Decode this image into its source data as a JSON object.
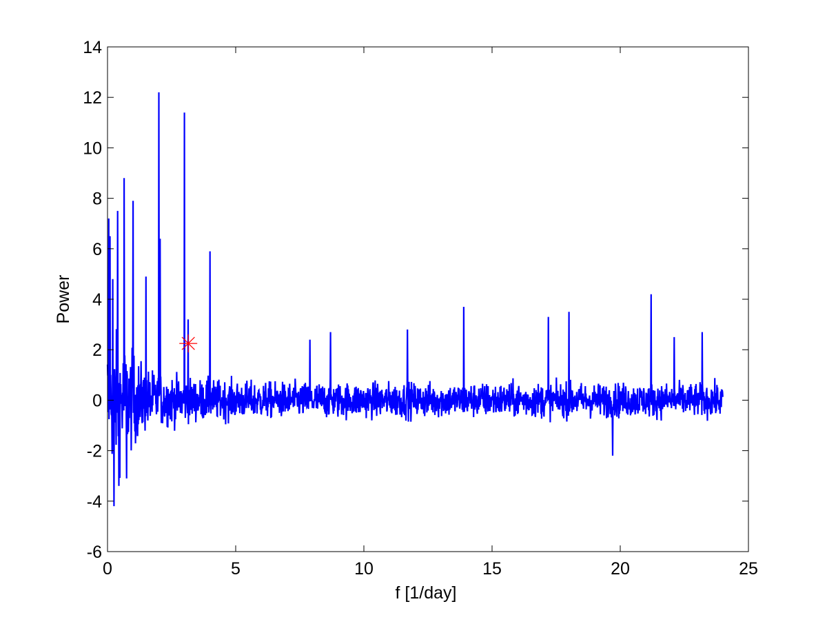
{
  "chart_data": {
    "type": "line",
    "title": "",
    "xlabel": "f [1/day]",
    "ylabel": "Power",
    "xlim": [
      0,
      25
    ],
    "ylim": [
      -6,
      14
    ],
    "xticks": [
      0,
      5,
      10,
      15,
      20,
      25
    ],
    "xtick_labels": [
      "0",
      "5",
      "10",
      "15",
      "20",
      "25"
    ],
    "yticks": [
      -6,
      -4,
      -2,
      0,
      2,
      4,
      6,
      8,
      10,
      12,
      14
    ],
    "ytick_labels": [
      "-6",
      "-4",
      "-2",
      "0",
      "2",
      "4",
      "6",
      "8",
      "10",
      "12",
      "14"
    ],
    "grid": false,
    "series": [
      {
        "color": "#0000ff",
        "x_range": [
          0,
          24
        ],
        "noise_envelope": [
          {
            "x": 0,
            "amp": 3.0
          },
          {
            "x": 0.6,
            "amp": 2.4
          },
          {
            "x": 1.5,
            "amp": 1.3
          },
          {
            "x": 3,
            "amp": 0.9
          },
          {
            "x": 6,
            "amp": 0.75
          },
          {
            "x": 24,
            "amp": 0.7
          }
        ],
        "peaks": [
          {
            "x": 0.05,
            "y": 7.2
          },
          {
            "x": 0.1,
            "y": 6.5
          },
          {
            "x": 0.2,
            "y": 4.8
          },
          {
            "x": 0.25,
            "y": -4.2
          },
          {
            "x": 0.4,
            "y": 7.5
          },
          {
            "x": 0.45,
            "y": -3.4
          },
          {
            "x": 0.65,
            "y": 8.8
          },
          {
            "x": 0.75,
            "y": -3.1
          },
          {
            "x": 1.0,
            "y": 7.9
          },
          {
            "x": 1.5,
            "y": 4.9
          },
          {
            "x": 2.0,
            "y": 12.2
          },
          {
            "x": 2.05,
            "y": 6.4
          },
          {
            "x": 3.0,
            "y": 11.4
          },
          {
            "x": 3.15,
            "y": 3.2
          },
          {
            "x": 4.0,
            "y": 5.9
          },
          {
            "x": 7.9,
            "y": 2.4
          },
          {
            "x": 8.7,
            "y": 2.7
          },
          {
            "x": 11.7,
            "y": 2.8
          },
          {
            "x": 13.9,
            "y": 3.7
          },
          {
            "x": 17.2,
            "y": 3.3
          },
          {
            "x": 18.0,
            "y": 3.5
          },
          {
            "x": 19.7,
            "y": -2.2
          },
          {
            "x": 21.2,
            "y": 4.2
          },
          {
            "x": 22.1,
            "y": 2.5
          },
          {
            "x": 23.2,
            "y": 2.7
          }
        ]
      }
    ],
    "markers": [
      {
        "x": 3.15,
        "y": 2.25,
        "symbol": "asterisk",
        "color": "#ff0000"
      }
    ]
  }
}
